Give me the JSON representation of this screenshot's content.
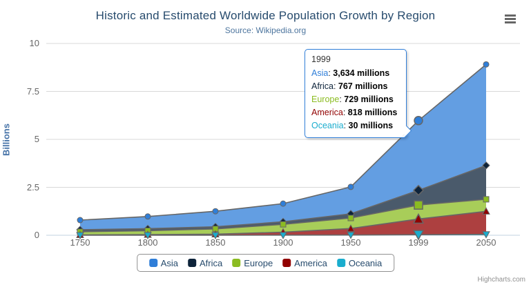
{
  "header": {
    "title": "Historic and Estimated Worldwide Population Growth by Region",
    "subtitle": "Source: Wikipedia.org"
  },
  "y_axis": {
    "title": "Billions",
    "tick_labels": [
      "0",
      "2.5",
      "5",
      "7.5",
      "10"
    ]
  },
  "x_axis": {
    "tick_labels": [
      "1750",
      "1800",
      "1850",
      "1900",
      "1950",
      "1999",
      "2050"
    ]
  },
  "legend": {
    "items": [
      {
        "label": "Asia",
        "color": "#2f7ed8"
      },
      {
        "label": "Africa",
        "color": "#0d233a"
      },
      {
        "label": "Europe",
        "color": "#8bbc21"
      },
      {
        "label": "America",
        "color": "#910000"
      },
      {
        "label": "Oceania",
        "color": "#1aadce"
      }
    ]
  },
  "tooltip": {
    "header": "1999",
    "rows": [
      {
        "label": "Asia",
        "color": "#2f7ed8",
        "value": "3,634 millions"
      },
      {
        "label": "Africa",
        "color": "#0d233a",
        "value": "767 millions"
      },
      {
        "label": "Europe",
        "color": "#8bbc21",
        "value": "729 millions"
      },
      {
        "label": "America",
        "color": "#910000",
        "value": "818 millions"
      },
      {
        "label": "Oceania",
        "color": "#1aadce",
        "value": "30 millions"
      }
    ]
  },
  "credits": {
    "label": "Highcharts.com"
  },
  "theme": {
    "title_color": "#274b6d",
    "subtitle_color": "#4d759e",
    "axis_label_color": "#666666",
    "yaxis_title_color": "#4572a7",
    "grid_color": "#d8d8d8",
    "axis_line_color": "#c0d0e0",
    "series_line_color": "#666666",
    "tooltip_border_color": "#2f7ed8",
    "legend_border_color": "#909090"
  },
  "chart_data": {
    "type": "area",
    "stacking": "normal",
    "title": "Historic and Estimated Worldwide Population Growth by Region",
    "subtitle": "Source: Wikipedia.org",
    "xlabel": "",
    "ylabel": "Billions",
    "categories": [
      "1750",
      "1800",
      "1850",
      "1900",
      "1950",
      "1999",
      "2050"
    ],
    "values_unit": "millions",
    "ylim": [
      0,
      10
    ],
    "yticks": [
      0,
      2.5,
      5,
      7.5,
      10
    ],
    "grid": true,
    "legend_position": "bottom",
    "hover_category_index": 5,
    "series": [
      {
        "name": "Asia",
        "color": "#2f7ed8",
        "marker": "circle",
        "values": [
          502,
          635,
          809,
          947,
          1402,
          3634,
          5268
        ]
      },
      {
        "name": "Africa",
        "color": "#0d233a",
        "marker": "diamond",
        "values": [
          106,
          107,
          111,
          133,
          221,
          767,
          1766
        ]
      },
      {
        "name": "Europe",
        "color": "#8bbc21",
        "marker": "square",
        "values": [
          163,
          203,
          276,
          408,
          547,
          729,
          628
        ]
      },
      {
        "name": "America",
        "color": "#910000",
        "marker": "triangle",
        "values": [
          18,
          31,
          54,
          156,
          339,
          818,
          1201
        ]
      },
      {
        "name": "Oceania",
        "color": "#1aadce",
        "marker": "triangle-down",
        "values": [
          2,
          2,
          2,
          6,
          13,
          30,
          46
        ]
      }
    ]
  }
}
